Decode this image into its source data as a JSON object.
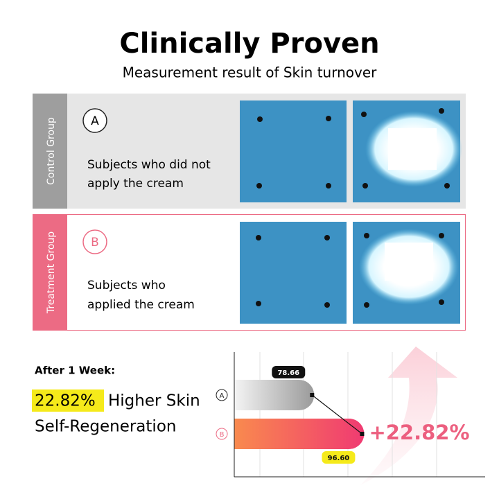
{
  "header": {
    "title": "Clinically Proven",
    "subtitle": "Measurement result of Skin turnover"
  },
  "groups": [
    {
      "label": "Control Group",
      "letter": "A",
      "lines": [
        "Subjects who did not",
        "apply the cream"
      ]
    },
    {
      "label": "Treatment Group",
      "letter": "B",
      "lines": [
        "Subjects who",
        "applied the cream"
      ]
    }
  ],
  "result": {
    "period": "After 1 Week:",
    "highlight": "22.82%",
    "headline_rest": "Higher Skin",
    "headline_line2": "Self-Regeneration"
  },
  "chart": {
    "type": "bar",
    "orientation": "horizontal",
    "categories": [
      "A",
      "B"
    ],
    "values": [
      78.66,
      96.6
    ],
    "value_labels": [
      "78.66",
      "96.60"
    ],
    "xlim": [
      50,
      140
    ],
    "annotation": "+22.82%"
  }
}
